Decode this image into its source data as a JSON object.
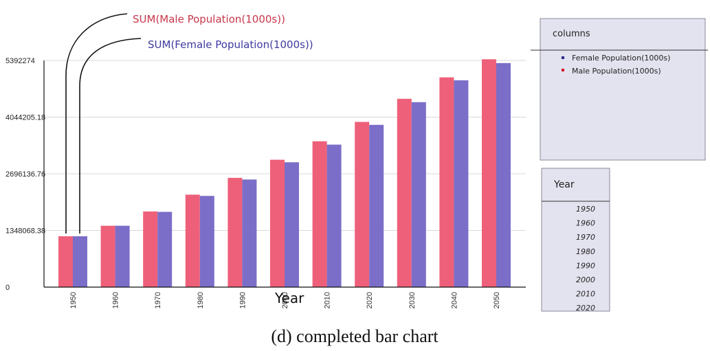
{
  "chart_data": {
    "type": "bar",
    "title": "",
    "xlabel": "Year",
    "ylabel": "",
    "categories": [
      "1950",
      "1960",
      "1970",
      "1980",
      "1990",
      "2000",
      "2010",
      "2020",
      "2030",
      "2040",
      "2050"
    ],
    "series": [
      {
        "name": "Male Population(1000s)",
        "annotation": "SUM(Male Population(1000s))",
        "values": [
          1210000,
          1460000,
          1800000,
          2200000,
          2600000,
          3030000,
          3470000,
          3930000,
          4480000,
          4990000,
          5420000
        ]
      },
      {
        "name": "Female Population(1000s)",
        "annotation": "SUM(Female Population(1000s))",
        "values": [
          1210000,
          1460000,
          1790000,
          2170000,
          2560000,
          2970000,
          3390000,
          3860000,
          4400000,
          4920000,
          5330000
        ]
      }
    ],
    "y_ticks": [
      "5392274",
      "4044205.18",
      "2696136.76",
      "1348068.38",
      "0"
    ],
    "y_tick_values": [
      5392274,
      4044205.18,
      2696136.76,
      1348068.38,
      0
    ],
    "ylim": [
      0,
      5392274
    ],
    "grid": true,
    "colors": {
      "male": "#ee6079",
      "female": "#7b6ec8",
      "male_text": "#c8364a",
      "female_text": "#3e3aa0"
    }
  },
  "columns_panel": {
    "title": "columns",
    "items": [
      {
        "label": "Female Population(1000s)",
        "color": "#2b2c8a"
      },
      {
        "label": "Male Population(1000s)",
        "color": "#d6182f"
      }
    ]
  },
  "year_panel": {
    "title": "Year",
    "items": [
      "1950",
      "1960",
      "1970",
      "1980",
      "1990",
      "2000",
      "2010",
      "2020"
    ]
  },
  "caption": "(d) completed bar chart"
}
